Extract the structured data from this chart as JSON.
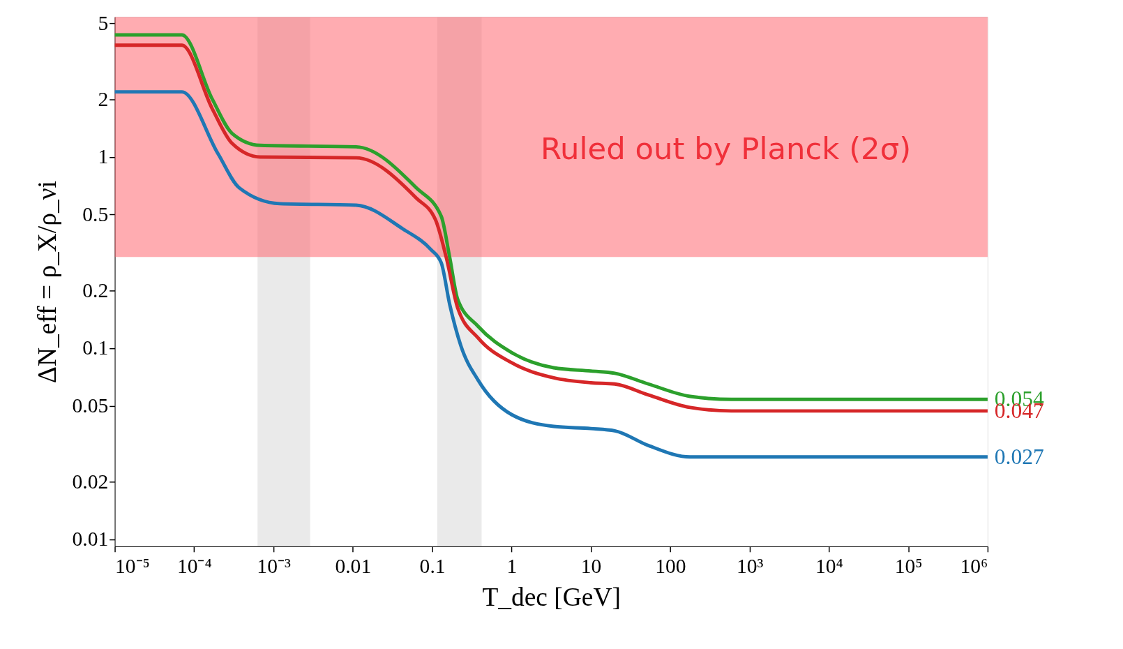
{
  "chart_data": {
    "type": "line",
    "xlabel": "T_dec [GeV]",
    "ylabel": "ΔN_eff = ρ_X/ρ_νi",
    "log": "xy",
    "grid": false,
    "legend": false,
    "marker": "none",
    "line_style": "solid",
    "xlim": [
      1e-05,
      1000000.0
    ],
    "ylim": [
      0.0092,
      5.4
    ],
    "xticks": [
      {
        "value": 1e-05,
        "label": "10⁻⁵"
      },
      {
        "value": 0.0001,
        "label": "10⁻⁴"
      },
      {
        "value": 0.001,
        "label": "10⁻³"
      },
      0.01,
      0.1,
      1,
      10,
      100,
      {
        "value": 1000.0,
        "label": "10³"
      },
      {
        "value": 10000.0,
        "label": "10⁴"
      },
      {
        "value": 100000.0,
        "label": "10⁵"
      },
      {
        "value": 1000000.0,
        "label": "10⁶"
      }
    ],
    "yticks": [
      0.01,
      0.02,
      0.05,
      0.1,
      0.2,
      0.5,
      1,
      2,
      5
    ],
    "series": [
      {
        "color": "#2ca02c",
        "x": [
          1e-05,
          7e-05,
          0.00017,
          0.0003,
          0.00068,
          0.011,
          0.063,
          0.13,
          0.166,
          0.21,
          0.38,
          1,
          3.4,
          10,
          20,
          53,
          178,
          589,
          1000000.0
        ],
        "values": [
          4.35,
          4.35,
          2.0,
          1.33,
          1.15,
          1.13,
          0.69,
          0.49,
          0.3,
          0.18,
          0.13,
          0.095,
          0.079,
          0.076,
          0.074,
          0.065,
          0.056,
          0.054,
          0.054
        ]
      },
      {
        "color": "#d62728",
        "x": [
          1e-05,
          7e-05,
          0.00017,
          0.0003,
          0.00068,
          0.011,
          0.063,
          0.11,
          0.15,
          0.21,
          0.38,
          1,
          3.4,
          10,
          20,
          53,
          178,
          589,
          1000000.0
        ],
        "values": [
          3.84,
          3.84,
          1.78,
          1.18,
          1.0,
          0.99,
          0.61,
          0.47,
          0.3,
          0.162,
          0.113,
          0.084,
          0.07,
          0.066,
          0.065,
          0.057,
          0.049,
          0.047,
          0.047
        ]
      },
      {
        "color": "#1f77b4",
        "x": [
          1e-05,
          7e-05,
          0.0002,
          0.00037,
          0.0012,
          0.011,
          0.043,
          0.095,
          0.13,
          0.166,
          0.23,
          0.38,
          1,
          3.4,
          10,
          20,
          53,
          178,
          589,
          1000000.0
        ],
        "values": [
          2.19,
          2.19,
          1.04,
          0.69,
          0.57,
          0.56,
          0.42,
          0.33,
          0.28,
          0.17,
          0.103,
          0.068,
          0.045,
          0.039,
          0.038,
          0.037,
          0.031,
          0.027,
          0.027,
          0.027
        ]
      }
    ],
    "bands": [
      {
        "axis": "x",
        "from": 0.00063,
        "to": 0.0029,
        "color": "#d9d9d9"
      },
      {
        "axis": "x",
        "from": 0.116,
        "to": 0.42,
        "color": "#d9d9d9"
      },
      {
        "axis": "y",
        "from": 0.3,
        "to": 5.4,
        "color": "#ff5a64",
        "label": "Ruled out by Planck (2σ)"
      }
    ],
    "annotations": [
      "0.054",
      "0.047",
      "0.027"
    ]
  }
}
